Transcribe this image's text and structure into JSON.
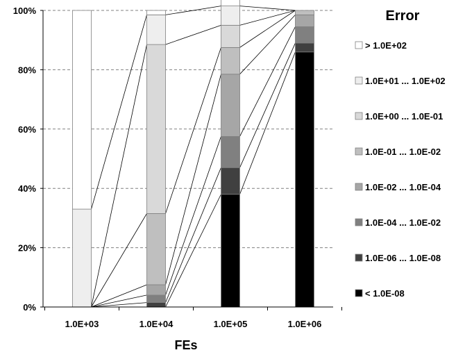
{
  "chart_data": {
    "type": "bar",
    "stacked": true,
    "percent_stacked": true,
    "categories": [
      "1.0E+03",
      "1.0E+04",
      "1.0E+05",
      "1.0E+06"
    ],
    "xlabel": "FEs",
    "ylabel": "",
    "ylim": [
      0,
      100
    ],
    "y_ticks": [
      "0%",
      "20%",
      "40%",
      "60%",
      "80%",
      "100%"
    ],
    "grid": "horizontal dashed",
    "legend_title": "Error",
    "legend_position": "right",
    "connector_lines": true,
    "series": [
      {
        "name": "< 1.0E-08",
        "color": "#000000",
        "values": [
          0,
          0,
          38,
          86
        ]
      },
      {
        "name": "1.0E-06 ... 1.0E-08",
        "color": "#404040",
        "values": [
          0,
          1.5,
          9,
          3
        ]
      },
      {
        "name": "1.0E-04 ... 1.0E-02",
        "color": "#808080",
        "values": [
          0,
          2.5,
          10.5,
          5.5
        ]
      },
      {
        "name": "1.0E-02 ... 1.0E-04",
        "color": "#a6a6a6",
        "values": [
          0,
          3.5,
          21,
          4
        ]
      },
      {
        "name": "1.0E-01 ... 1.0E-02",
        "color": "#bfbfbf",
        "values": [
          0,
          24,
          9,
          1.5
        ]
      },
      {
        "name": "1.0E+00 ... 1.0E-01",
        "color": "#d9d9d9",
        "values": [
          0,
          57,
          7.5,
          0
        ]
      },
      {
        "name": "1.0E+01 ... 1.0E+02",
        "color": "#eeeeee",
        "values": [
          33,
          10,
          6.5,
          0
        ]
      },
      {
        "name": "> 1.0E+02",
        "color": "#ffffff",
        "values": [
          67,
          1.5,
          5,
          0
        ]
      }
    ]
  }
}
